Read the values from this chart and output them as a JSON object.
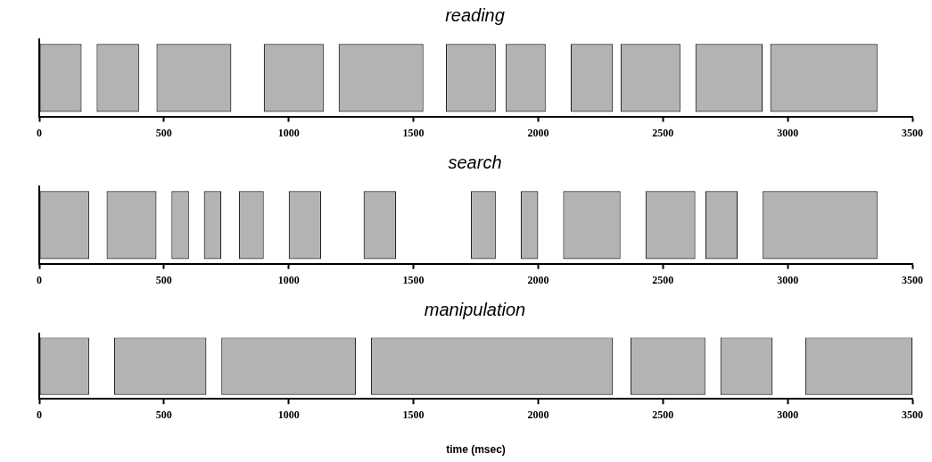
{
  "chart_data": [
    {
      "type": "bar",
      "orientation": "horizontal",
      "title": "reading",
      "categories": [
        null
      ],
      "xlim": [
        0,
        3500
      ],
      "xticks": [
        0,
        500,
        1000,
        1500,
        2000,
        2500,
        3000,
        3500
      ],
      "grid": false,
      "legend": false,
      "tick_labels": "x",
      "series": [
        {
          "color": "#b3b3b3",
          "base": [
            0
          ],
          "values": [
            170
          ]
        },
        {
          "color": "#b3b3b3",
          "base": [
            230
          ],
          "values": [
            170
          ]
        },
        {
          "color": "#b3b3b3",
          "base": [
            470
          ],
          "values": [
            300
          ]
        },
        {
          "color": "#b3b3b3",
          "base": [
            900
          ],
          "values": [
            240
          ]
        },
        {
          "color": "#b3b3b3",
          "base": [
            1200
          ],
          "values": [
            340
          ]
        },
        {
          "color": "#b3b3b3",
          "base": [
            1630
          ],
          "values": [
            200
          ]
        },
        {
          "color": "#b3b3b3",
          "base": [
            1870
          ],
          "values": [
            160
          ]
        },
        {
          "color": "#b3b3b3",
          "base": [
            2130
          ],
          "values": [
            170
          ]
        },
        {
          "color": "#b3b3b3",
          "base": [
            2330
          ],
          "values": [
            240
          ]
        },
        {
          "color": "#b3b3b3",
          "base": [
            2630
          ],
          "values": [
            270
          ]
        },
        {
          "color": "#b3b3b3",
          "base": [
            2930
          ],
          "values": [
            430
          ]
        }
      ]
    },
    {
      "type": "bar",
      "orientation": "horizontal",
      "title": "search",
      "categories": [
        null
      ],
      "xlim": [
        0,
        3500
      ],
      "xticks": [
        0,
        500,
        1000,
        1500,
        2000,
        2500,
        3000,
        3500
      ],
      "grid": false,
      "legend": false,
      "tick_labels": "x",
      "series": [
        {
          "color": "#b3b3b3",
          "base": [
            0
          ],
          "values": [
            200
          ]
        },
        {
          "color": "#b3b3b3",
          "base": [
            270
          ],
          "values": [
            200
          ]
        },
        {
          "color": "#b3b3b3",
          "base": [
            530
          ],
          "values": [
            70
          ]
        },
        {
          "color": "#b3b3b3",
          "base": [
            660
          ],
          "values": [
            70
          ]
        },
        {
          "color": "#b3b3b3",
          "base": [
            800
          ],
          "values": [
            100
          ]
        },
        {
          "color": "#b3b3b3",
          "base": [
            1000
          ],
          "values": [
            130
          ]
        },
        {
          "color": "#b3b3b3",
          "base": [
            1300
          ],
          "values": [
            130
          ]
        },
        {
          "color": "#b3b3b3",
          "base": [
            1730
          ],
          "values": [
            100
          ]
        },
        {
          "color": "#b3b3b3",
          "base": [
            1930
          ],
          "values": [
            70
          ]
        },
        {
          "color": "#b3b3b3",
          "base": [
            2100
          ],
          "values": [
            230
          ]
        },
        {
          "color": "#b3b3b3",
          "base": [
            2430
          ],
          "values": [
            200
          ]
        },
        {
          "color": "#b3b3b3",
          "base": [
            2670
          ],
          "values": [
            130
          ]
        },
        {
          "color": "#b3b3b3",
          "base": [
            2900
          ],
          "values": [
            460
          ]
        }
      ]
    },
    {
      "type": "bar",
      "orientation": "horizontal",
      "title": "manipulation",
      "xlabel": "time (msec)",
      "categories": [
        null
      ],
      "xlim": [
        0,
        3500
      ],
      "xticks": [
        0,
        500,
        1000,
        1500,
        2000,
        2500,
        3000,
        3500
      ],
      "grid": false,
      "legend": false,
      "tick_labels": "x",
      "series": [
        {
          "color": "#b3b3b3",
          "base": [
            0
          ],
          "values": [
            200
          ]
        },
        {
          "color": "#b3b3b3",
          "base": [
            300
          ],
          "values": [
            370
          ]
        },
        {
          "color": "#b3b3b3",
          "base": [
            730
          ],
          "values": [
            540
          ]
        },
        {
          "color": "#b3b3b3",
          "base": [
            1330
          ],
          "values": [
            970
          ]
        },
        {
          "color": "#b3b3b3",
          "base": [
            2370
          ],
          "values": [
            300
          ]
        },
        {
          "color": "#b3b3b3",
          "base": [
            2730
          ],
          "values": [
            210
          ]
        },
        {
          "color": "#b3b3b3",
          "base": [
            3070
          ],
          "values": [
            430
          ]
        }
      ]
    }
  ]
}
